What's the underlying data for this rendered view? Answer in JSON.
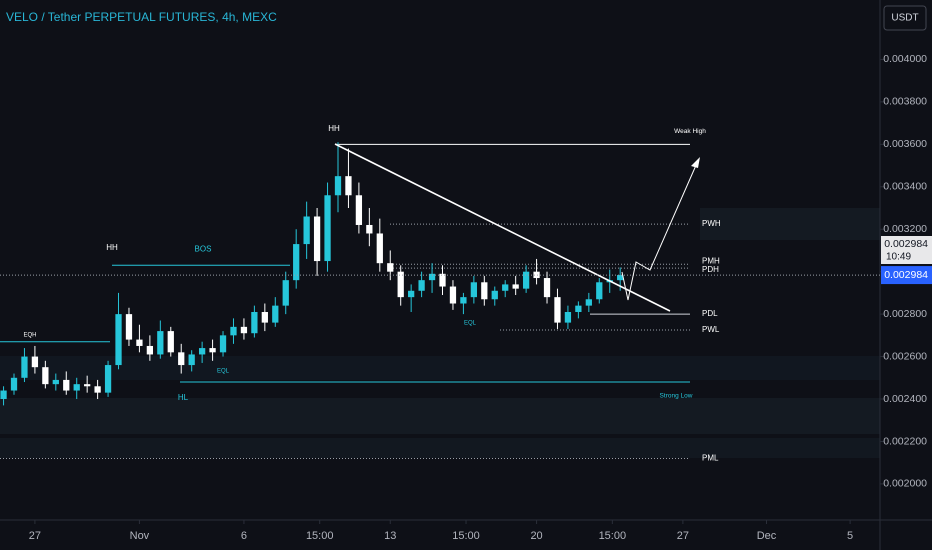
{
  "chart_data": {
    "type": "candlestick",
    "title": "VELO / Tether PERPETUAL FUTURES, 4h, MEXC",
    "currency_button": "USDT",
    "x": [
      -1.5,
      -1,
      -0.5,
      0,
      0.5,
      1,
      1.5,
      2,
      2.5,
      3,
      3.5,
      4,
      4.5,
      5,
      5.5,
      6,
      6.5,
      7,
      7.5,
      8,
      8.5,
      9,
      9.5,
      10,
      10.5,
      11,
      11.5,
      12,
      12.5,
      13,
      13.5,
      14,
      14.5,
      15,
      15.5,
      16,
      16.5,
      17,
      17.5,
      18,
      18.5,
      19,
      19.5,
      20,
      20.5,
      21,
      21.5,
      22,
      22.5,
      23,
      23.5,
      24,
      24.5,
      25,
      25.5,
      26,
      26.5,
      27,
      27.5,
      28
    ],
    "open": [
      0.0024,
      0.00244,
      0.0025,
      0.0026,
      0.00255,
      0.00247,
      0.00249,
      0.00244,
      0.00247,
      0.00246,
      0.00243,
      0.00256,
      0.0028,
      0.00268,
      0.00265,
      0.00261,
      0.00272,
      0.00262,
      0.00256,
      0.00261,
      0.00264,
      0.00262,
      0.0027,
      0.00274,
      0.00271,
      0.00281,
      0.00276,
      0.00284,
      0.00296,
      0.00313,
      0.00326,
      0.00305,
      0.00336,
      0.00345,
      0.00336,
      0.00322,
      0.00318,
      0.00304,
      0.003,
      0.00288,
      0.00291,
      0.00296,
      0.00299,
      0.00293,
      0.00285,
      0.00288,
      0.00295,
      0.00287,
      0.00291,
      0.00294,
      0.00292,
      0.003,
      0.00297,
      0.00288,
      0.00276,
      0.00281,
      0.00284,
      0.00287,
      0.00295,
      0.00296
    ],
    "high": [
      0.00246,
      0.00252,
      0.00264,
      0.00265,
      0.00258,
      0.00252,
      0.00253,
      0.0025,
      0.00251,
      0.00249,
      0.00258,
      0.0029,
      0.00283,
      0.00275,
      0.0027,
      0.00277,
      0.00274,
      0.00266,
      0.00263,
      0.00267,
      0.00268,
      0.00272,
      0.00278,
      0.00278,
      0.00284,
      0.00285,
      0.00288,
      0.003,
      0.0032,
      0.00333,
      0.0033,
      0.00342,
      0.00361,
      0.00358,
      0.00342,
      0.0033,
      0.00325,
      0.0031,
      0.00303,
      0.00294,
      0.003,
      0.00304,
      0.00303,
      0.00296,
      0.0029,
      0.00298,
      0.00298,
      0.00293,
      0.00296,
      0.00298,
      0.00303,
      0.00306,
      0.003,
      0.00292,
      0.00284,
      0.00286,
      0.0029,
      0.00297,
      0.00301,
      0.00302
    ],
    "low": [
      0.00237,
      0.00242,
      0.00248,
      0.00252,
      0.00245,
      0.00244,
      0.00242,
      0.0024,
      0.00243,
      0.0024,
      0.00241,
      0.00254,
      0.00265,
      0.00262,
      0.00258,
      0.00259,
      0.0026,
      0.00252,
      0.00253,
      0.00257,
      0.00258,
      0.0026,
      0.00266,
      0.00268,
      0.00269,
      0.00272,
      0.00274,
      0.0028,
      0.00292,
      0.00306,
      0.00298,
      0.003,
      0.00328,
      0.0033,
      0.00318,
      0.00312,
      0.003,
      0.00296,
      0.00284,
      0.00281,
      0.00288,
      0.0029,
      0.00289,
      0.00282,
      0.0028,
      0.00285,
      0.00284,
      0.00284,
      0.00288,
      0.00289,
      0.0029,
      0.00294,
      0.00285,
      0.00273,
      0.00273,
      0.00278,
      0.00281,
      0.00285,
      0.0029,
      0.00291
    ],
    "close": [
      0.00244,
      0.0025,
      0.0026,
      0.00255,
      0.00247,
      0.00249,
      0.00244,
      0.00247,
      0.00246,
      0.00243,
      0.00256,
      0.0028,
      0.00268,
      0.00265,
      0.00261,
      0.00272,
      0.00262,
      0.00256,
      0.00261,
      0.00264,
      0.00262,
      0.0027,
      0.00274,
      0.00271,
      0.00281,
      0.00276,
      0.00284,
      0.00296,
      0.00313,
      0.00326,
      0.00305,
      0.00336,
      0.00345,
      0.00336,
      0.00322,
      0.00318,
      0.00304,
      0.003,
      0.00288,
      0.00291,
      0.00296,
      0.00299,
      0.00293,
      0.00285,
      0.00288,
      0.00295,
      0.00287,
      0.00291,
      0.00294,
      0.00292,
      0.003,
      0.00297,
      0.00288,
      0.00276,
      0.00281,
      0.00284,
      0.00287,
      0.00295,
      0.00296,
      0.002984
    ],
    "up_color": "#26c6da",
    "down_color": "#ffffff",
    "xlim": [
      -1.67,
      40.43
    ],
    "xticks": [
      {
        "value": 0,
        "label": "27"
      },
      {
        "value": 5,
        "label": "Nov"
      },
      {
        "value": 10,
        "label": "6"
      },
      {
        "value": 13.625,
        "label": "15:00"
      },
      {
        "value": 17,
        "label": "13"
      },
      {
        "value": 20.625,
        "label": "15:00"
      },
      {
        "value": 24,
        "label": "20"
      },
      {
        "value": 27.625,
        "label": "15:00"
      },
      {
        "value": 31,
        "label": "27"
      },
      {
        "value": 35,
        "label": "Dec"
      },
      {
        "value": 39,
        "label": "5"
      }
    ],
    "ylim": [
      0.00183,
      0.00428
    ],
    "yticks": [
      {
        "value": 0.002,
        "label": "0.002000"
      },
      {
        "value": 0.0022,
        "label": "0.002200"
      },
      {
        "value": 0.0024,
        "label": "0.002400"
      },
      {
        "value": 0.0026,
        "label": "0.002600"
      },
      {
        "value": 0.0028,
        "label": "0.002800"
      },
      {
        "value": 0.003,
        "label": "0.003000"
      },
      {
        "value": 0.0032,
        "label": "0.003200"
      },
      {
        "value": 0.0034,
        "label": "0.003400"
      },
      {
        "value": 0.0036,
        "label": "0.003600"
      },
      {
        "value": 0.0038,
        "label": "0.003800"
      },
      {
        "value": 0.004,
        "label": "0.004000"
      }
    ],
    "last_price": 0.002984,
    "countdown": "10:49",
    "levels": [
      {
        "label": "Weak High",
        "value": 0.0036
      },
      {
        "label": "PWH",
        "value": 0.003224
      },
      {
        "label": "PMH",
        "value": 0.003035
      },
      {
        "label": "PDH",
        "value": 0.003017
      },
      {
        "label": "PDL",
        "value": 0.0028
      },
      {
        "label": "PWL",
        "value": 0.002725
      },
      {
        "label": "EQH",
        "value": 0.00267
      },
      {
        "label": "BOS",
        "value": 0.00303
      },
      {
        "label": "HL",
        "value": 0.00248
      },
      {
        "label": "PML",
        "value": 0.00212
      }
    ],
    "annotations": [
      "HH",
      "HH",
      "EQL",
      "EQL",
      "Strong Low"
    ]
  }
}
